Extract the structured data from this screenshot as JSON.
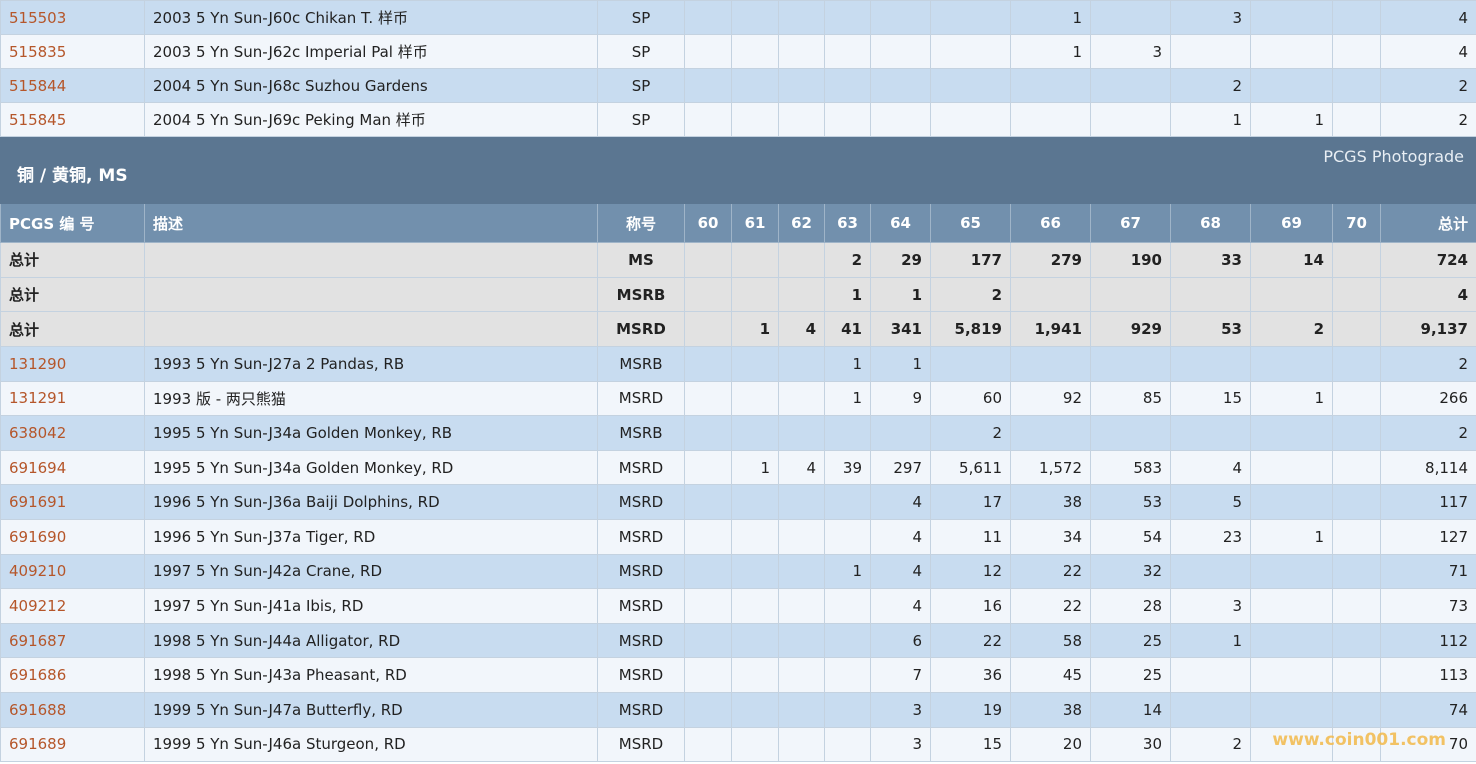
{
  "top_rows": [
    [
      "515503",
      "2003 5 Yn Sun-J60c Chikan T. 样币",
      "SP",
      null,
      null,
      null,
      null,
      null,
      null,
      "1",
      null,
      "3",
      null,
      null,
      "4"
    ],
    [
      "515835",
      "2003 5 Yn Sun-J62c Imperial Pal 样币",
      "SP",
      null,
      null,
      null,
      null,
      null,
      null,
      "1",
      "3",
      null,
      null,
      null,
      "4"
    ],
    [
      "515844",
      "2004 5 Yn Sun-J68c Suzhou Gardens",
      "SP",
      null,
      null,
      null,
      null,
      null,
      null,
      null,
      null,
      "2",
      null,
      null,
      "2"
    ],
    [
      "515845",
      "2004 5 Yn Sun-J69c Peking Man 样币",
      "SP",
      null,
      null,
      null,
      null,
      null,
      null,
      null,
      null,
      "1",
      "1",
      null,
      "2"
    ]
  ],
  "section": {
    "title": "铜 / 黄铜, MS",
    "link": "PCGS Photograde"
  },
  "table": {
    "headers": [
      "PCGS 编 号",
      "描述",
      "称号",
      "60",
      "61",
      "62",
      "63",
      "64",
      "65",
      "66",
      "67",
      "68",
      "69",
      "70",
      "总计"
    ],
    "totals": [
      [
        "总计",
        null,
        "MS",
        null,
        null,
        null,
        "2",
        "29",
        "177",
        "279",
        "190",
        "33",
        "14",
        null,
        "724"
      ],
      [
        "总计",
        null,
        "MSRB",
        null,
        null,
        null,
        "1",
        "1",
        "2",
        null,
        null,
        null,
        null,
        null,
        "4"
      ],
      [
        "总计",
        null,
        "MSRD",
        null,
        "1",
        "4",
        "41",
        "341",
        "5,819",
        "1,941",
        "929",
        "53",
        "2",
        null,
        "9,137"
      ]
    ],
    "rows": [
      [
        "131290",
        "1993 5 Yn Sun-J27a 2 Pandas, RB",
        "MSRB",
        null,
        null,
        null,
        "1",
        "1",
        null,
        null,
        null,
        null,
        null,
        null,
        "2"
      ],
      [
        "131291",
        "1993 版 - 两只熊猫",
        "MSRD",
        null,
        null,
        null,
        "1",
        "9",
        "60",
        "92",
        "85",
        "15",
        "1",
        null,
        "266"
      ],
      [
        "638042",
        "1995 5 Yn Sun-J34a Golden Monkey, RB",
        "MSRB",
        null,
        null,
        null,
        null,
        null,
        "2",
        null,
        null,
        null,
        null,
        null,
        "2"
      ],
      [
        "691694",
        "1995 5 Yn Sun-J34a Golden Monkey, RD",
        "MSRD",
        null,
        "1",
        "4",
        "39",
        "297",
        "5,611",
        "1,572",
        "583",
        "4",
        null,
        null,
        "8,114"
      ],
      [
        "691691",
        "1996 5 Yn Sun-J36a Baiji Dolphins, RD",
        "MSRD",
        null,
        null,
        null,
        null,
        "4",
        "17",
        "38",
        "53",
        "5",
        null,
        null,
        "117"
      ],
      [
        "691690",
        "1996 5 Yn Sun-J37a Tiger, RD",
        "MSRD",
        null,
        null,
        null,
        null,
        "4",
        "11",
        "34",
        "54",
        "23",
        "1",
        null,
        "127"
      ],
      [
        "409210",
        "1997 5 Yn Sun-J42a Crane, RD",
        "MSRD",
        null,
        null,
        null,
        "1",
        "4",
        "12",
        "22",
        "32",
        null,
        null,
        null,
        "71"
      ],
      [
        "409212",
        "1997 5 Yn Sun-J41a Ibis, RD",
        "MSRD",
        null,
        null,
        null,
        null,
        "4",
        "16",
        "22",
        "28",
        "3",
        null,
        null,
        "73"
      ],
      [
        "691687",
        "1998 5 Yn Sun-J44a Alligator, RD",
        "MSRD",
        null,
        null,
        null,
        null,
        "6",
        "22",
        "58",
        "25",
        "1",
        null,
        null,
        "112"
      ],
      [
        "691686",
        "1998 5 Yn Sun-J43a Pheasant, RD",
        "MSRD",
        null,
        null,
        null,
        null,
        "7",
        "36",
        "45",
        "25",
        null,
        null,
        null,
        "113"
      ],
      [
        "691688",
        "1999 5 Yn Sun-J47a Butterfly, RD",
        "MSRD",
        null,
        null,
        null,
        null,
        "3",
        "19",
        "38",
        "14",
        null,
        null,
        null,
        "74"
      ],
      [
        "691689",
        "1999 5 Yn Sun-J46a Sturgeon, RD",
        "MSRD",
        null,
        null,
        null,
        null,
        "3",
        "15",
        "20",
        "30",
        "2",
        null,
        null,
        "70"
      ]
    ]
  },
  "watermark": "www.coin001.com"
}
